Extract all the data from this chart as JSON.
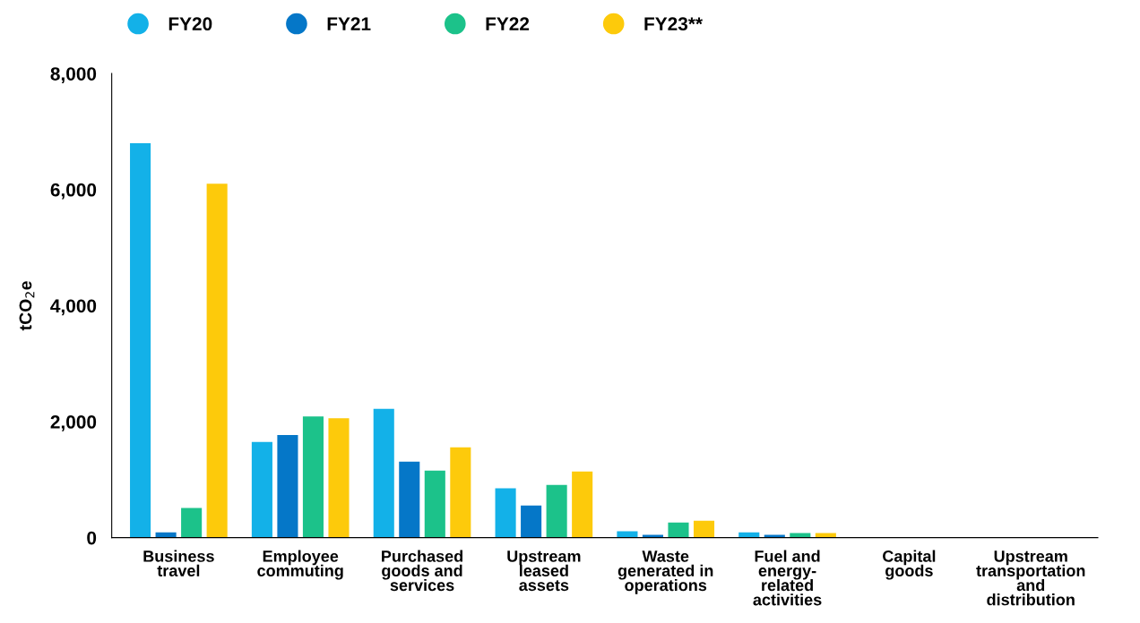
{
  "chart_data": {
    "type": "bar",
    "ylabel": "tCO$_{2}$e",
    "categories": [
      "Business travel",
      "Employee commuting",
      "Purchased goods and services",
      "Upstream leased assets",
      "Waste generated in operations",
      "Fuel and energy-related activities",
      "Capital goods",
      "Upstream transportation and distribution"
    ],
    "series": [
      {
        "name": "FY20",
        "color": "#13b1e8",
        "values": [
          6800,
          1650,
          2220,
          850,
          110,
          90,
          0,
          0
        ]
      },
      {
        "name": "FY21",
        "color": "#0577c8",
        "values": [
          90,
          1770,
          1310,
          555,
          50,
          50,
          0,
          0
        ]
      },
      {
        "name": "FY22",
        "color": "#1cc28a",
        "values": [
          510,
          2090,
          1155,
          910,
          260,
          80,
          0,
          0
        ]
      },
      {
        "name": "FY23**",
        "color": "#fdca0b",
        "values": [
          6100,
          2060,
          1555,
          1140,
          290,
          80,
          0,
          0
        ]
      }
    ],
    "ylim": [
      0,
      8000
    ],
    "yticks": [
      {
        "value": 0,
        "label": "0"
      },
      {
        "value": 2000,
        "label": "2,000"
      },
      {
        "value": 4000,
        "label": "4,000"
      },
      {
        "value": 6000,
        "label": "6,000"
      },
      {
        "value": 8000,
        "label": "8,000"
      }
    ],
    "grid": false,
    "legend": "top left"
  }
}
